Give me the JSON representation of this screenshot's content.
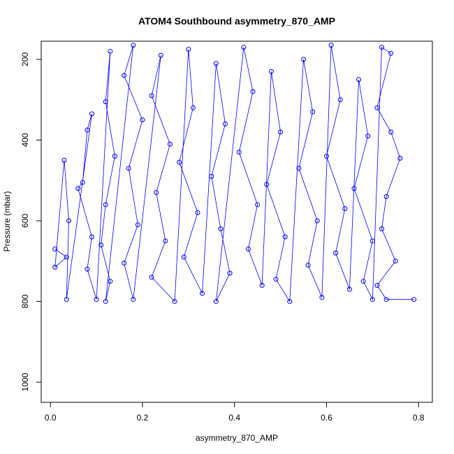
{
  "chart_data": {
    "type": "scatter",
    "title": "ATOM4 Southbound asymmetry_870_AMP",
    "xlabel": "asymmetry_870_AMP",
    "ylabel": "Pressure (mbar)",
    "xlim": [
      -0.02,
      0.83
    ],
    "ylim": [
      1050,
      155
    ],
    "y_inverted": true,
    "x_ticks": [
      0.0,
      0.2,
      0.4,
      0.6,
      0.8
    ],
    "x_tick_labels": [
      "0.0",
      "0.2",
      "0.4",
      "0.6",
      "0.8"
    ],
    "y_ticks": [
      200,
      400,
      600,
      800,
      1000
    ],
    "y_tick_labels": [
      "200",
      "400",
      "600",
      "800",
      "1000"
    ],
    "grid": false,
    "legend": "none",
    "marker": "open-circle",
    "connected_by_lines": true,
    "color": "#0000ff",
    "series": [
      {
        "values": [
          {
            "x": 0.01,
            "y": 670
          },
          {
            "x": 0.035,
            "y": 690
          },
          {
            "x": 0.01,
            "y": 715
          },
          {
            "x": 0.03,
            "y": 450
          },
          {
            "x": 0.04,
            "y": 600
          },
          {
            "x": 0.035,
            "y": 795
          },
          {
            "x": 0.09,
            "y": 335
          },
          {
            "x": 0.08,
            "y": 375
          },
          {
            "x": 0.07,
            "y": 505
          },
          {
            "x": 0.06,
            "y": 520
          },
          {
            "x": 0.09,
            "y": 640
          },
          {
            "x": 0.08,
            "y": 720
          },
          {
            "x": 0.1,
            "y": 795
          },
          {
            "x": 0.13,
            "y": 180
          },
          {
            "x": 0.12,
            "y": 305
          },
          {
            "x": 0.14,
            "y": 440
          },
          {
            "x": 0.12,
            "y": 560
          },
          {
            "x": 0.11,
            "y": 660
          },
          {
            "x": 0.13,
            "y": 750
          },
          {
            "x": 0.12,
            "y": 800
          },
          {
            "x": 0.18,
            "y": 165
          },
          {
            "x": 0.16,
            "y": 240
          },
          {
            "x": 0.2,
            "y": 350
          },
          {
            "x": 0.17,
            "y": 470
          },
          {
            "x": 0.19,
            "y": 610
          },
          {
            "x": 0.16,
            "y": 705
          },
          {
            "x": 0.18,
            "y": 795
          },
          {
            "x": 0.24,
            "y": 190
          },
          {
            "x": 0.22,
            "y": 290
          },
          {
            "x": 0.26,
            "y": 410
          },
          {
            "x": 0.23,
            "y": 530
          },
          {
            "x": 0.25,
            "y": 650
          },
          {
            "x": 0.22,
            "y": 740
          },
          {
            "x": 0.27,
            "y": 800
          },
          {
            "x": 0.3,
            "y": 175
          },
          {
            "x": 0.31,
            "y": 320
          },
          {
            "x": 0.28,
            "y": 455
          },
          {
            "x": 0.32,
            "y": 580
          },
          {
            "x": 0.29,
            "y": 690
          },
          {
            "x": 0.33,
            "y": 780
          },
          {
            "x": 0.36,
            "y": 210
          },
          {
            "x": 0.38,
            "y": 360
          },
          {
            "x": 0.35,
            "y": 490
          },
          {
            "x": 0.37,
            "y": 620
          },
          {
            "x": 0.39,
            "y": 730
          },
          {
            "x": 0.36,
            "y": 800
          },
          {
            "x": 0.42,
            "y": 170
          },
          {
            "x": 0.44,
            "y": 280
          },
          {
            "x": 0.41,
            "y": 430
          },
          {
            "x": 0.45,
            "y": 560
          },
          {
            "x": 0.43,
            "y": 670
          },
          {
            "x": 0.46,
            "y": 760
          },
          {
            "x": 0.48,
            "y": 230
          },
          {
            "x": 0.5,
            "y": 380
          },
          {
            "x": 0.47,
            "y": 510
          },
          {
            "x": 0.51,
            "y": 640
          },
          {
            "x": 0.49,
            "y": 745
          },
          {
            "x": 0.52,
            "y": 800
          },
          {
            "x": 0.55,
            "y": 200
          },
          {
            "x": 0.57,
            "y": 330
          },
          {
            "x": 0.54,
            "y": 470
          },
          {
            "x": 0.58,
            "y": 600
          },
          {
            "x": 0.56,
            "y": 710
          },
          {
            "x": 0.59,
            "y": 790
          },
          {
            "x": 0.61,
            "y": 165
          },
          {
            "x": 0.63,
            "y": 300
          },
          {
            "x": 0.6,
            "y": 440
          },
          {
            "x": 0.64,
            "y": 570
          },
          {
            "x": 0.62,
            "y": 680
          },
          {
            "x": 0.65,
            "y": 770
          },
          {
            "x": 0.67,
            "y": 250
          },
          {
            "x": 0.69,
            "y": 390
          },
          {
            "x": 0.66,
            "y": 520
          },
          {
            "x": 0.7,
            "y": 650
          },
          {
            "x": 0.68,
            "y": 750
          },
          {
            "x": 0.7,
            "y": 795
          },
          {
            "x": 0.72,
            "y": 170
          },
          {
            "x": 0.74,
            "y": 185
          },
          {
            "x": 0.71,
            "y": 320
          },
          {
            "x": 0.74,
            "y": 380
          },
          {
            "x": 0.76,
            "y": 445
          },
          {
            "x": 0.73,
            "y": 540
          },
          {
            "x": 0.72,
            "y": 620
          },
          {
            "x": 0.75,
            "y": 700
          },
          {
            "x": 0.71,
            "y": 760
          },
          {
            "x": 0.73,
            "y": 795
          },
          {
            "x": 0.79,
            "y": 795
          }
        ]
      }
    ]
  }
}
